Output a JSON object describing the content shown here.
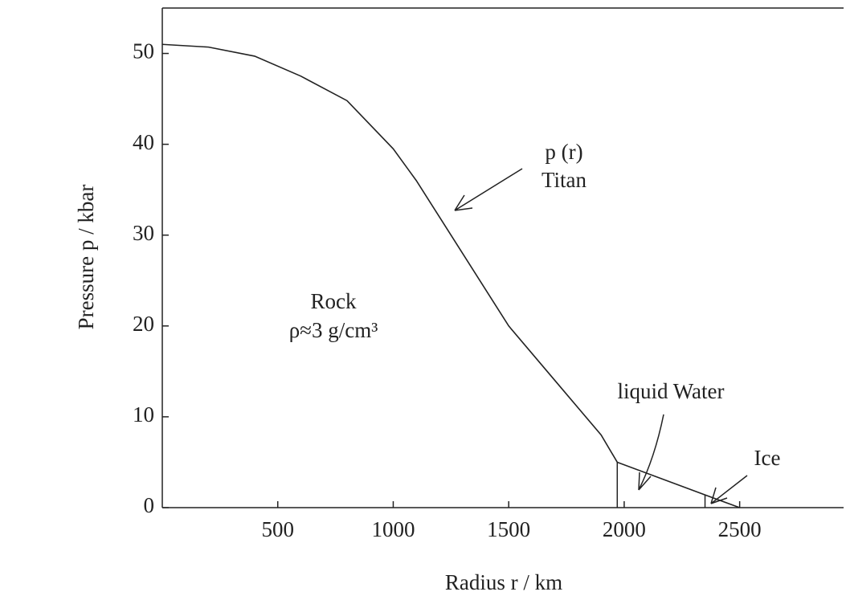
{
  "chart_data": {
    "type": "line",
    "xlabel": "Radius  r / km",
    "ylabel": "Pressure  p / kbar",
    "x": [
      0,
      200,
      400,
      600,
      800,
      1000,
      1100,
      1200,
      1300,
      1400,
      1500,
      1700,
      1900,
      1970,
      2350,
      2500
    ],
    "series": [
      {
        "name": "p (r)",
        "color": "#222222",
        "values": [
          51,
          50.7,
          49.7,
          47.5,
          44.8,
          39.5,
          36,
          32,
          28,
          24,
          20,
          14,
          8,
          5,
          1.4,
          0
        ]
      }
    ],
    "boundaries": [
      {
        "x": 1970,
        "y": 5
      },
      {
        "x": 2350,
        "y": 1.4
      }
    ],
    "xlim": [
      0,
      2950
    ],
    "ylim": [
      0,
      55
    ],
    "xticks": [
      500,
      1000,
      1500,
      2000,
      2500
    ],
    "yticks": [
      0,
      10,
      20,
      30,
      40,
      50
    ],
    "annotations": [
      "p (r)",
      "Titan",
      "Rock",
      "ρ≈3 g/cm³",
      "liquid Water",
      "Ice"
    ]
  }
}
